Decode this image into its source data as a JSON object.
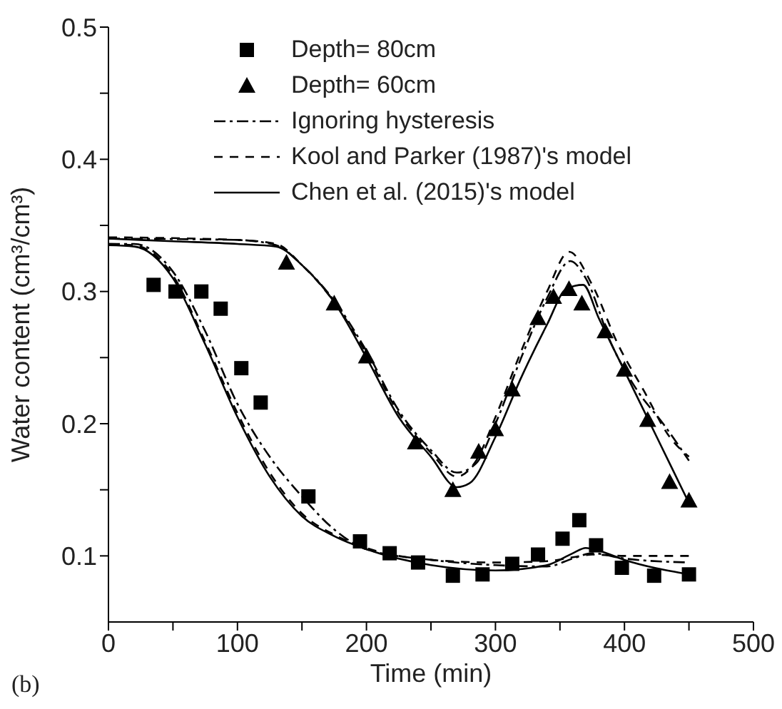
{
  "chart_data": {
    "type": "scatter",
    "xlabel": "Time (min)",
    "ylabel": "Water content (cm³/cm³)",
    "xlim": [
      0,
      500
    ],
    "xticks": [
      0,
      {
        "value": 50,
        "label": null
      },
      100,
      {
        "value": 150,
        "label": null
      },
      200,
      {
        "value": 250,
        "label": null
      },
      300,
      {
        "value": 350,
        "label": null
      },
      400,
      {
        "value": 450,
        "label": null
      },
      500
    ],
    "ylim": [
      0.05,
      0.5
    ],
    "yticks": [
      0.1,
      {
        "value": 0.15,
        "label": null
      },
      0.2,
      {
        "value": 0.25,
        "label": null
      },
      0.3,
      {
        "value": 0.35,
        "label": null
      },
      0.4,
      {
        "value": 0.45,
        "label": null
      },
      0.5
    ],
    "grid": false,
    "legend": "top",
    "annotations": [
      "(b)"
    ],
    "series": [
      {
        "name": "Depth= 80cm",
        "type": "scatter",
        "marker": "square",
        "color": "#000000",
        "x": [
          35,
          52,
          72,
          87,
          103,
          118,
          155,
          195,
          218,
          240,
          267,
          290,
          313,
          333,
          352,
          365,
          378,
          398,
          423,
          450
        ],
        "values": [
          0.305,
          0.3,
          0.3,
          0.287,
          0.242,
          0.216,
          0.145,
          0.111,
          0.102,
          0.095,
          0.085,
          0.086,
          0.094,
          0.101,
          0.113,
          0.127,
          0.108,
          0.091,
          0.085,
          0.086
        ]
      },
      {
        "name": "Depth= 60cm",
        "marker": "triangle",
        "color": "#000000",
        "x": [
          138,
          175,
          200,
          238,
          267,
          287,
          300,
          313,
          333,
          345,
          357,
          367,
          385,
          400,
          418,
          435,
          450
        ],
        "values": [
          0.322,
          0.291,
          0.251,
          0.186,
          0.15,
          0.179,
          0.196,
          0.226,
          0.28,
          0.296,
          0.302,
          0.291,
          0.27,
          0.241,
          0.203,
          0.156,
          0.142
        ]
      },
      {
        "name": "Ignoring hysteresis",
        "type": "line",
        "line_style": "dashdot",
        "marker": "none",
        "color": "#000000",
        "x": [
          0,
          20,
          50,
          75,
          100,
          125,
          150,
          175,
          200,
          250,
          300,
          340,
          360,
          375,
          400,
          450
        ],
        "values": [
          0.336,
          0.336,
          0.315,
          0.27,
          0.215,
          0.175,
          0.145,
          0.12,
          0.105,
          0.097,
          0.093,
          0.092,
          0.098,
          0.102,
          0.098,
          0.095
        ]
      },
      {
        "name": "Kool and Parker (1987)'s model",
        "type": "line",
        "line_style": "dashed",
        "marker": "none",
        "color": "#000000",
        "x": [
          0,
          20,
          50,
          75,
          100,
          125,
          150,
          175,
          200,
          250,
          300,
          340,
          360,
          375,
          400,
          450
        ],
        "values": [
          0.336,
          0.335,
          0.312,
          0.262,
          0.208,
          0.163,
          0.132,
          0.116,
          0.106,
          0.097,
          0.095,
          0.096,
          0.099,
          0.101,
          0.1,
          0.1
        ]
      },
      {
        "name": "Chen et al. (2015)'s model",
        "type": "line",
        "line_style": "solid",
        "marker": "none",
        "color": "#000000",
        "x": [
          0,
          20,
          50,
          75,
          100,
          125,
          150,
          175,
          200,
          250,
          300,
          340,
          360,
          370,
          380,
          400,
          450
        ],
        "values": [
          0.335,
          0.334,
          0.31,
          0.26,
          0.205,
          0.16,
          0.13,
          0.115,
          0.105,
          0.093,
          0.089,
          0.093,
          0.102,
          0.106,
          0.104,
          0.097,
          0.086
        ]
      },
      {
        "type": "line",
        "line_style": "dashdot",
        "marker": "none",
        "color": "#000000",
        "x": [
          0,
          100,
          130,
          150,
          175,
          200,
          225,
          250,
          270,
          285,
          300,
          320,
          340,
          358,
          370,
          390,
          410,
          430,
          450
        ],
        "values": [
          0.34,
          0.339,
          0.335,
          0.32,
          0.293,
          0.255,
          0.21,
          0.18,
          0.163,
          0.17,
          0.2,
          0.25,
          0.295,
          0.323,
          0.31,
          0.26,
          0.225,
          0.2,
          0.172
        ]
      },
      {
        "type": "line",
        "line_style": "dashed",
        "marker": "none",
        "color": "#000000",
        "x": [
          0,
          100,
          130,
          150,
          175,
          200,
          225,
          250,
          270,
          285,
          300,
          320,
          340,
          357,
          375,
          395,
          415,
          435,
          450
        ],
        "values": [
          0.341,
          0.339,
          0.336,
          0.32,
          0.292,
          0.253,
          0.208,
          0.178,
          0.16,
          0.172,
          0.205,
          0.255,
          0.3,
          0.33,
          0.305,
          0.26,
          0.225,
          0.19,
          0.175
        ]
      },
      {
        "type": "line",
        "line_style": "solid",
        "marker": "none",
        "color": "#000000",
        "x": [
          0,
          50,
          100,
          130,
          150,
          175,
          200,
          225,
          250,
          270,
          280,
          300,
          320,
          340,
          355,
          368,
          380,
          400,
          425,
          450
        ],
        "values": [
          0.34,
          0.338,
          0.336,
          0.334,
          0.32,
          0.292,
          0.25,
          0.205,
          0.175,
          0.152,
          0.155,
          0.19,
          0.235,
          0.275,
          0.302,
          0.305,
          0.28,
          0.24,
          0.19,
          0.14
        ]
      }
    ]
  }
}
